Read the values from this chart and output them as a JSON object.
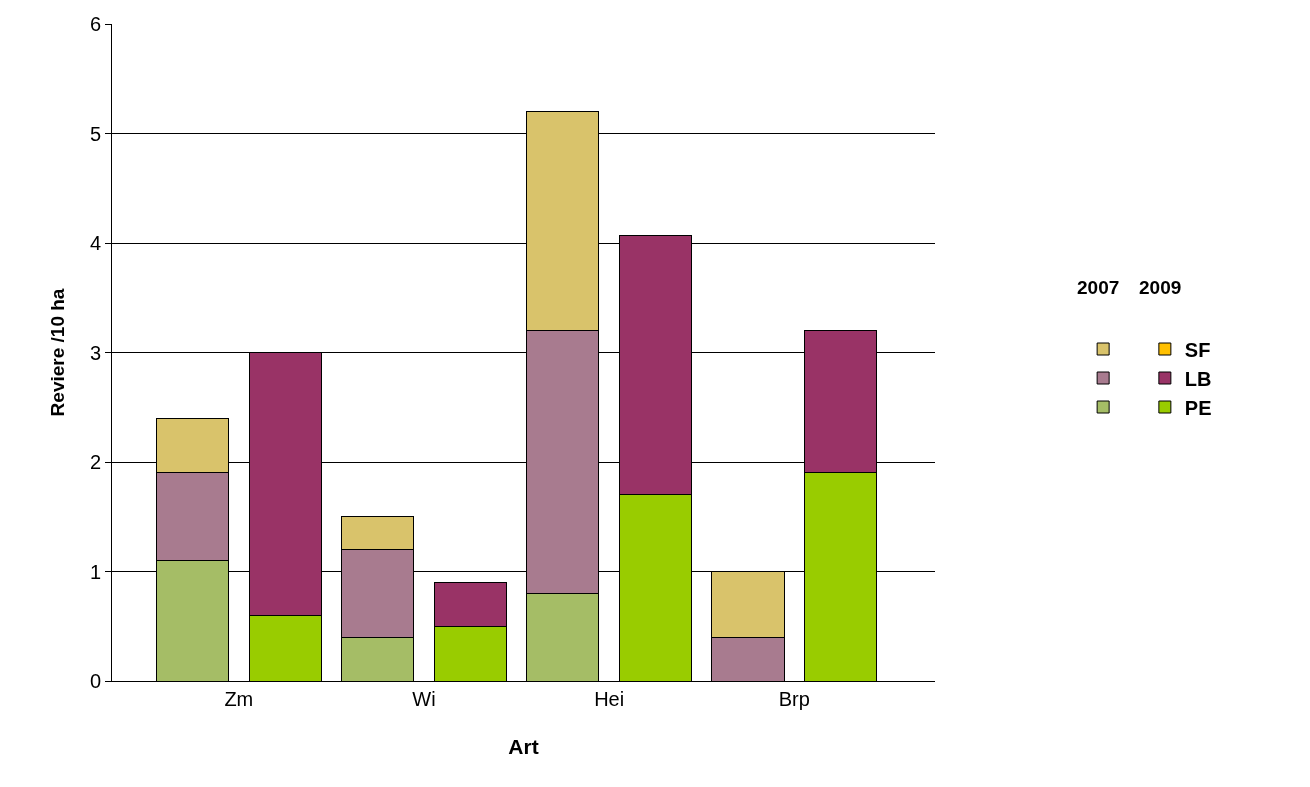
{
  "chart_data": {
    "type": "bar",
    "stacked": true,
    "xlabel": "Art",
    "ylabel": "Reviere /10 ha",
    "categories": [
      "Zm",
      null,
      "Wi",
      null,
      "Hei",
      null,
      "Brp",
      null
    ],
    "ylim": [
      0,
      6
    ],
    "yticks": [
      0,
      1,
      2,
      3,
      4,
      5,
      6
    ],
    "grid": "y",
    "legend": "right",
    "annotations": [
      "2007",
      "2009"
    ],
    "series": [
      {
        "color": "#a5bd66",
        "values": [
          1.1,
          null,
          0.4,
          null,
          0.8,
          null,
          null,
          null
        ]
      },
      {
        "color": "#a87b8f",
        "values": [
          0.8,
          null,
          0.8,
          null,
          2.4,
          null,
          0.4,
          null
        ]
      },
      {
        "color": "#d9c36b",
        "values": [
          0.5,
          null,
          0.3,
          null,
          2.0,
          null,
          0.6,
          null
        ]
      },
      {
        "name": "PE",
        "color": "#99cc00",
        "values": [
          null,
          0.6,
          null,
          0.5,
          null,
          1.7,
          null,
          1.9
        ]
      },
      {
        "name": "LB",
        "color": "#993366",
        "values": [
          null,
          2.4,
          null,
          0.4,
          null,
          2.37,
          null,
          1.3
        ]
      },
      {
        "name": "SF",
        "color": "#ffc000",
        "values": [
          null,
          null,
          null,
          null,
          null,
          null,
          null,
          null
        ]
      }
    ]
  }
}
